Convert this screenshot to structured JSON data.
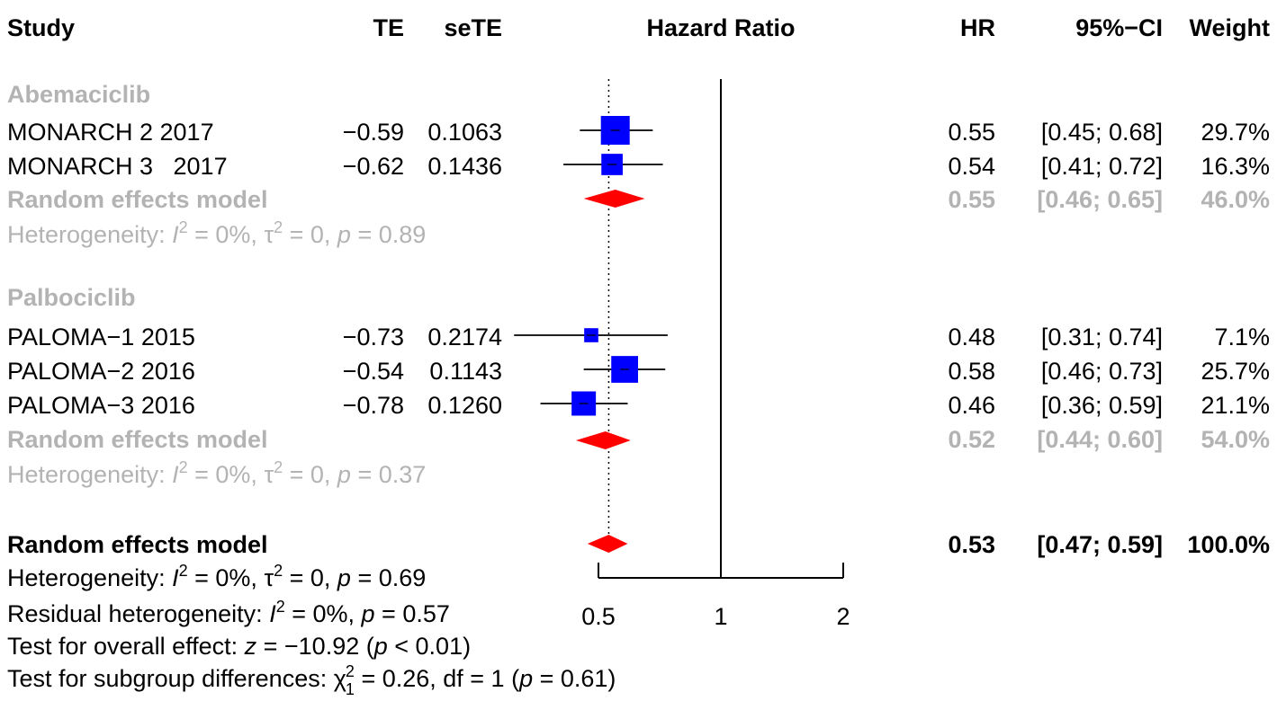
{
  "headers": {
    "study": "Study",
    "te": "TE",
    "sete": "seTE",
    "effect": "Hazard Ratio",
    "hr": "HR",
    "ci": "95%−CI",
    "weight": "Weight"
  },
  "groups": [
    {
      "name": "Abemaciclib",
      "rows": [
        {
          "study": "MONARCH 2 2017",
          "te": "−0.59",
          "sete": "0.1063",
          "hr_text": "0.55",
          "ci_text": "[0.45; 0.68]",
          "weight_text": "29.7%"
        },
        {
          "study": "MONARCH 3   2017",
          "te": "−0.62",
          "sete": "0.1436",
          "hr_text": "0.54",
          "ci_text": "[0.41; 0.72]",
          "weight_text": "16.3%"
        }
      ],
      "model": {
        "label": "Random effects model",
        "hr_text": "0.55",
        "ci_text": "[0.46; 0.65]",
        "weight_text": "46.0%"
      },
      "heterogeneity": {
        "prefix": "Heterogeneity: ",
        "i2": "I",
        "eq1": " = 0%, τ",
        "eq2": " = 0, ",
        "p": "p",
        "pval": " = 0.89"
      }
    },
    {
      "name": "Palbociclib",
      "rows": [
        {
          "study": "PALOMA−1 2015",
          "te": "−0.73",
          "sete": "0.2174",
          "hr_text": "0.48",
          "ci_text": "[0.31; 0.74]",
          "weight_text": "7.1%"
        },
        {
          "study": "PALOMA−2 2016",
          "te": "−0.54",
          "sete": "0.1143",
          "hr_text": "0.58",
          "ci_text": "[0.46; 0.73]",
          "weight_text": "25.7%"
        },
        {
          "study": "PALOMA−3 2016",
          "te": "−0.78",
          "sete": "0.1260",
          "hr_text": "0.46",
          "ci_text": "[0.36; 0.59]",
          "weight_text": "21.1%"
        }
      ],
      "model": {
        "label": "Random effects model",
        "hr_text": "0.52",
        "ci_text": "[0.44; 0.60]",
        "weight_text": "54.0%"
      },
      "heterogeneity": {
        "prefix": "Heterogeneity: ",
        "i2": "I",
        "eq1": " = 0%, τ",
        "eq2": " = 0, ",
        "p": "p",
        "pval": " = 0.37"
      }
    }
  ],
  "overall": {
    "label": "Random effects model",
    "hr_text": "0.53",
    "ci_text": "[0.47; 0.59]",
    "weight_text": "100.0%"
  },
  "footer": {
    "het": {
      "prefix": "Heterogeneity: ",
      "i2": "I",
      "eq1": " = 0%, τ",
      "eq2": " = 0, ",
      "p": "p",
      "pval": " = 0.69"
    },
    "resid": {
      "prefix": "Residual heterogeneity: ",
      "i2": "I",
      "eq1": " = 0%, ",
      "p": "p",
      "pval": " = 0.57"
    },
    "overall_test": {
      "prefix": "Test for overall effect: ",
      "z": "z",
      "zval": " = −10.92 (",
      "p": "p",
      "pval": " < 0.01)"
    },
    "subgroup_test": {
      "prefix": "Test for subgroup differences: ",
      "chi": "χ",
      "chival": " = 0.26, df = 1 (",
      "p": "p",
      "pval": " = 0.61)"
    }
  },
  "colors": {
    "square": "#0000ff",
    "diamond": "#ff0000",
    "subgroup_text": "#b3b3b3",
    "line": "#000000"
  },
  "chart_data": {
    "type": "forest",
    "xlabel": "",
    "scale": "log",
    "xlim": [
      0.4,
      2
    ],
    "x_ticks": [
      0.5,
      1,
      2
    ],
    "tick_labels": [
      "0.5",
      "1",
      "2"
    ],
    "reference_line": 1,
    "overall_dotted_line": 0.53,
    "studies": [
      {
        "name": "MONARCH 2 2017",
        "group": "Abemaciclib",
        "hr": 0.55,
        "lower": 0.45,
        "upper": 0.68,
        "weight": 29.7
      },
      {
        "name": "MONARCH 3   2017",
        "group": "Abemaciclib",
        "hr": 0.54,
        "lower": 0.41,
        "upper": 0.72,
        "weight": 16.3
      },
      {
        "name": "PALOMA−1 2015",
        "group": "Palbociclib",
        "hr": 0.48,
        "lower": 0.31,
        "upper": 0.74,
        "weight": 7.1
      },
      {
        "name": "PALOMA−2 2016",
        "group": "Palbociclib",
        "hr": 0.58,
        "lower": 0.46,
        "upper": 0.73,
        "weight": 25.7
      },
      {
        "name": "PALOMA−3 2016",
        "group": "Palbociclib",
        "hr": 0.46,
        "lower": 0.36,
        "upper": 0.59,
        "weight": 21.1
      }
    ],
    "subgroup_models": [
      {
        "group": "Abemaciclib",
        "hr": 0.55,
        "lower": 0.46,
        "upper": 0.65,
        "weight": 46.0
      },
      {
        "group": "Palbociclib",
        "hr": 0.52,
        "lower": 0.44,
        "upper": 0.6,
        "weight": 54.0
      }
    ],
    "overall_model": {
      "hr": 0.53,
      "lower": 0.47,
      "upper": 0.59,
      "weight": 100.0
    }
  }
}
